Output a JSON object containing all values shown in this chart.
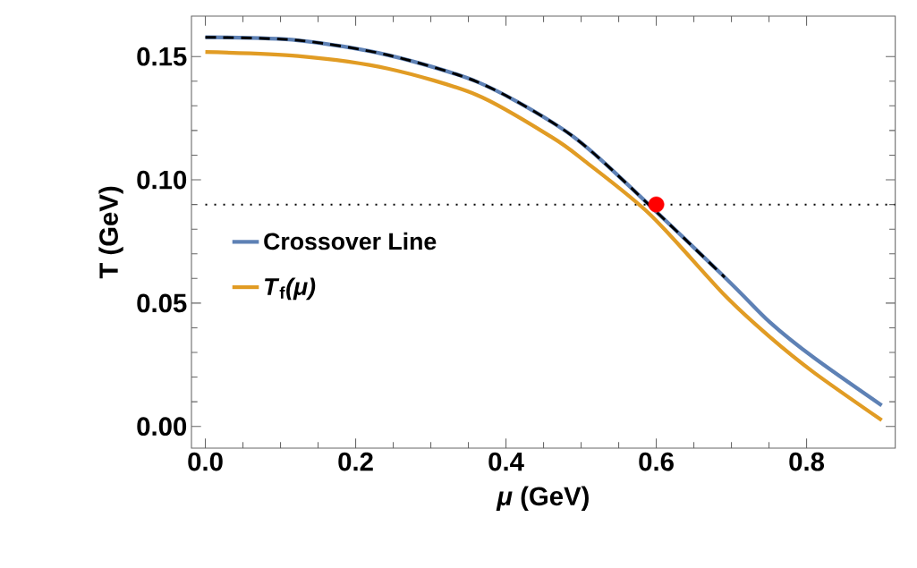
{
  "chart_data": {
    "type": "line",
    "xlabel": "*μ* (GeV)",
    "ylabel": "T (GeV)",
    "xlim": [
      -0.0185,
      0.918
    ],
    "ylim": [
      -0.0088,
      0.1664
    ],
    "xticks": [
      {
        "value": 0,
        "label": "0.0"
      },
      {
        "value": 0.2,
        "label": "0.2"
      },
      {
        "value": 0.4,
        "label": "0.4"
      },
      {
        "value": 0.6,
        "label": "0.6"
      },
      {
        "value": 0.8,
        "label": "0.8"
      }
    ],
    "yticks": [
      {
        "value": 0,
        "label": "0.00"
      },
      {
        "value": 0.05,
        "label": "0.05"
      },
      {
        "value": 0.1,
        "label": "0.10"
      },
      {
        "value": 0.15,
        "label": "0.15"
      }
    ],
    "grid": false,
    "legend": "left",
    "marker": "none",
    "series": [
      {
        "name": "Crossover Line",
        "color": "#5e81b5",
        "x": [
          0,
          0.123,
          0.243,
          0.362,
          0.461,
          0.528,
          0.597,
          0.691,
          0.751,
          0.81,
          0.9
        ],
        "values": [
          0.1578,
          0.1566,
          0.1506,
          0.1397,
          0.1234,
          0.1077,
          null,
          0.0605,
          0.0423,
          0.0278,
          0.0085
        ]
      },
      {
        "name": "*T*$_{f}$*(μ)*",
        "color": "#e19c24",
        "x": [
          0,
          0.123,
          0.243,
          0.362,
          0.461,
          0.5045,
          0.592,
          0.691,
          0.751,
          0.81,
          0.9
        ],
        "values": [
          0.1518,
          0.1502,
          0.1451,
          0.1343,
          0.1173,
          0.1077,
          0.0859,
          0.0532,
          0.0363,
          0.0218,
          0.0025
        ]
      },
      {
        "color": "#000000",
        "line_style": "dashed",
        "x": [
          0,
          0.123,
          0.243,
          0.362,
          0.461,
          0.528,
          0.597,
          0.691
        ],
        "values": [
          0.1578,
          0.1566,
          0.1506,
          0.1397,
          0.1234,
          0.1077,
          null,
          0.0605
        ]
      },
      {
        "type": "scatter",
        "marker": "circle",
        "color": "#ff0000",
        "x": [
          0.6
        ],
        "values": [
          0.09
        ]
      }
    ],
    "ref_lines": [
      {
        "axis": "y",
        "value": 0.09,
        "color": "#000000",
        "line_style": "dotted"
      }
    ]
  }
}
